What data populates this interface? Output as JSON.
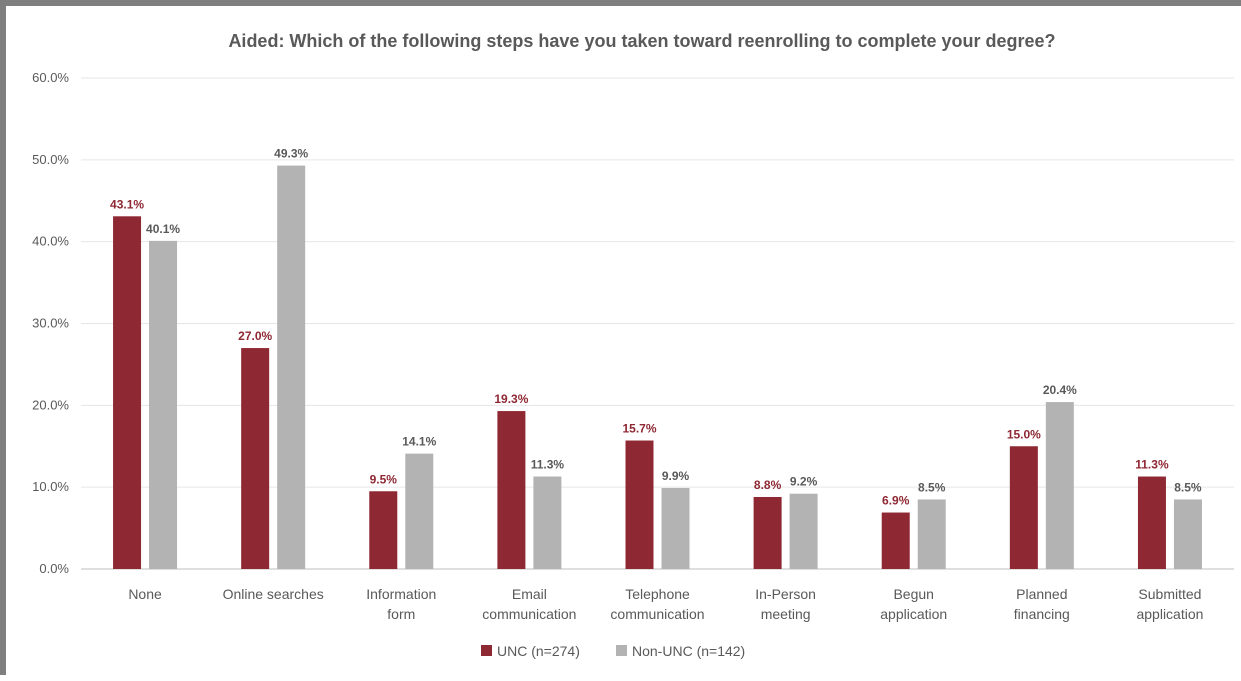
{
  "chart_data": {
    "type": "bar",
    "title": "Aided: Which of the following steps have you taken toward reenrolling to complete your degree?",
    "categories": [
      [
        "None"
      ],
      [
        "Online searches"
      ],
      [
        "Information",
        "form"
      ],
      [
        "Email",
        "communication"
      ],
      [
        "Telephone",
        "communication"
      ],
      [
        "In-Person",
        "meeting"
      ],
      [
        "Begun",
        "application"
      ],
      [
        "Planned",
        "financing"
      ],
      [
        "Submitted",
        "application"
      ]
    ],
    "series": [
      {
        "name": "UNC (n=274)",
        "color": "#8e2833",
        "values": [
          43.1,
          27.0,
          9.5,
          19.3,
          15.7,
          8.8,
          6.9,
          15.0,
          11.3
        ],
        "labels": [
          "43.1%",
          "27.0%",
          "9.5%",
          "19.3%",
          "15.7%",
          "8.8%",
          "6.9%",
          "15.0%",
          "11.3%"
        ],
        "label_color": "#8e2833"
      },
      {
        "name": "Non-UNC (n=142)",
        "color": "#b3b3b3",
        "values": [
          40.1,
          49.3,
          14.1,
          11.3,
          9.9,
          9.2,
          8.5,
          20.4,
          8.5
        ],
        "labels": [
          "40.1%",
          "49.3%",
          "14.1%",
          "11.3%",
          "9.9%",
          "9.2%",
          "8.5%",
          "20.4%",
          "8.5%"
        ],
        "label_color": "#595959"
      }
    ],
    "y_ticks": [
      {
        "value": 0,
        "label": "0.0%"
      },
      {
        "value": 10,
        "label": "10.0%"
      },
      {
        "value": 20,
        "label": "20.0%"
      },
      {
        "value": 30,
        "label": "30.0%"
      },
      {
        "value": 40,
        "label": "40.0%"
      },
      {
        "value": 50,
        "label": "50.0%"
      },
      {
        "value": 60,
        "label": "60.0%"
      }
    ],
    "ylim": [
      0,
      60
    ],
    "grid": true,
    "legend_position": "bottom"
  }
}
